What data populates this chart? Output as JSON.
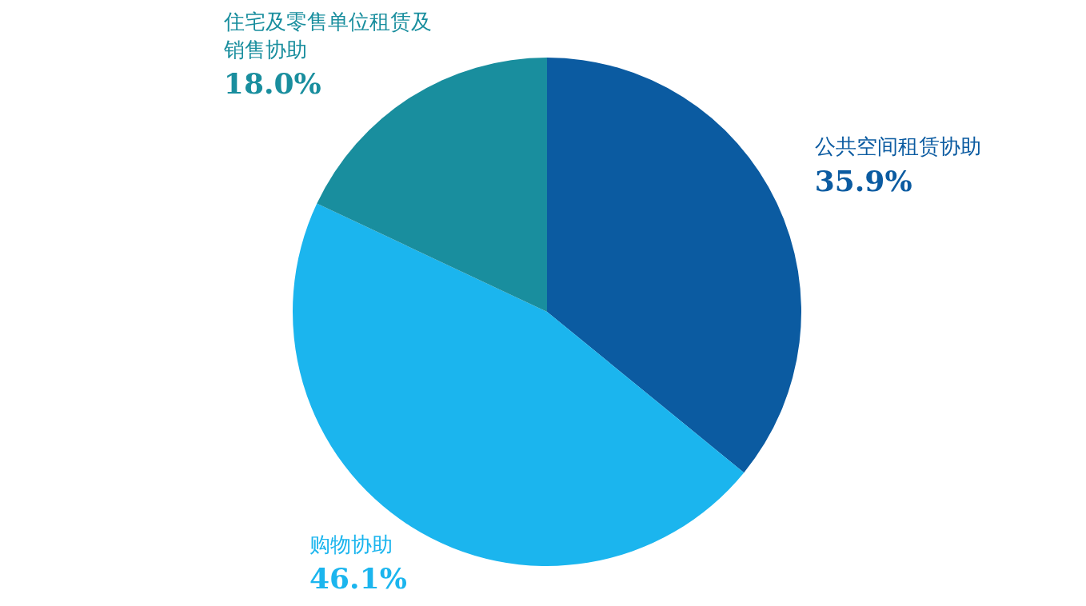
{
  "chart_data": {
    "type": "pie",
    "categories": [
      "公共空间租赁协助",
      "购物协助",
      "住宅及零售单位租赁及销售协助"
    ],
    "values": [
      35.9,
      46.1,
      18.0
    ],
    "value_labels": [
      "35.9%",
      "46.1%",
      "18.0%"
    ],
    "colors": [
      "#0b5ba1",
      "#1bb5ee",
      "#198e9e"
    ]
  }
}
